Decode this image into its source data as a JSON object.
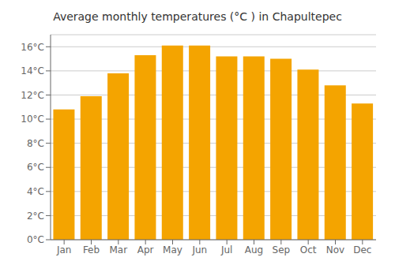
{
  "chart_data": {
    "type": "bar",
    "title": "Average monthly temperatures (°C ) in Chapultepec",
    "categories": [
      "Jan",
      "Feb",
      "Mar",
      "Apr",
      "May",
      "Jun",
      "Jul",
      "Aug",
      "Sep",
      "Oct",
      "Nov",
      "Dec"
    ],
    "values": [
      10.8,
      11.9,
      13.8,
      15.3,
      16.1,
      16.1,
      15.2,
      15.2,
      15.0,
      14.1,
      12.8,
      11.3
    ],
    "color": "#F4A400",
    "ylim": [
      0,
      17
    ],
    "yticks": [
      {
        "value": 0,
        "label": "0°C"
      },
      {
        "value": 2,
        "label": "2°C"
      },
      {
        "value": 4,
        "label": "4°C"
      },
      {
        "value": 6,
        "label": "6°C"
      },
      {
        "value": 8,
        "label": "8°C"
      },
      {
        "value": 10,
        "label": "10°C"
      },
      {
        "value": 12,
        "label": "12°C"
      },
      {
        "value": 14,
        "label": "14°C"
      },
      {
        "value": 16,
        "label": "16°C"
      }
    ],
    "grid": true
  }
}
